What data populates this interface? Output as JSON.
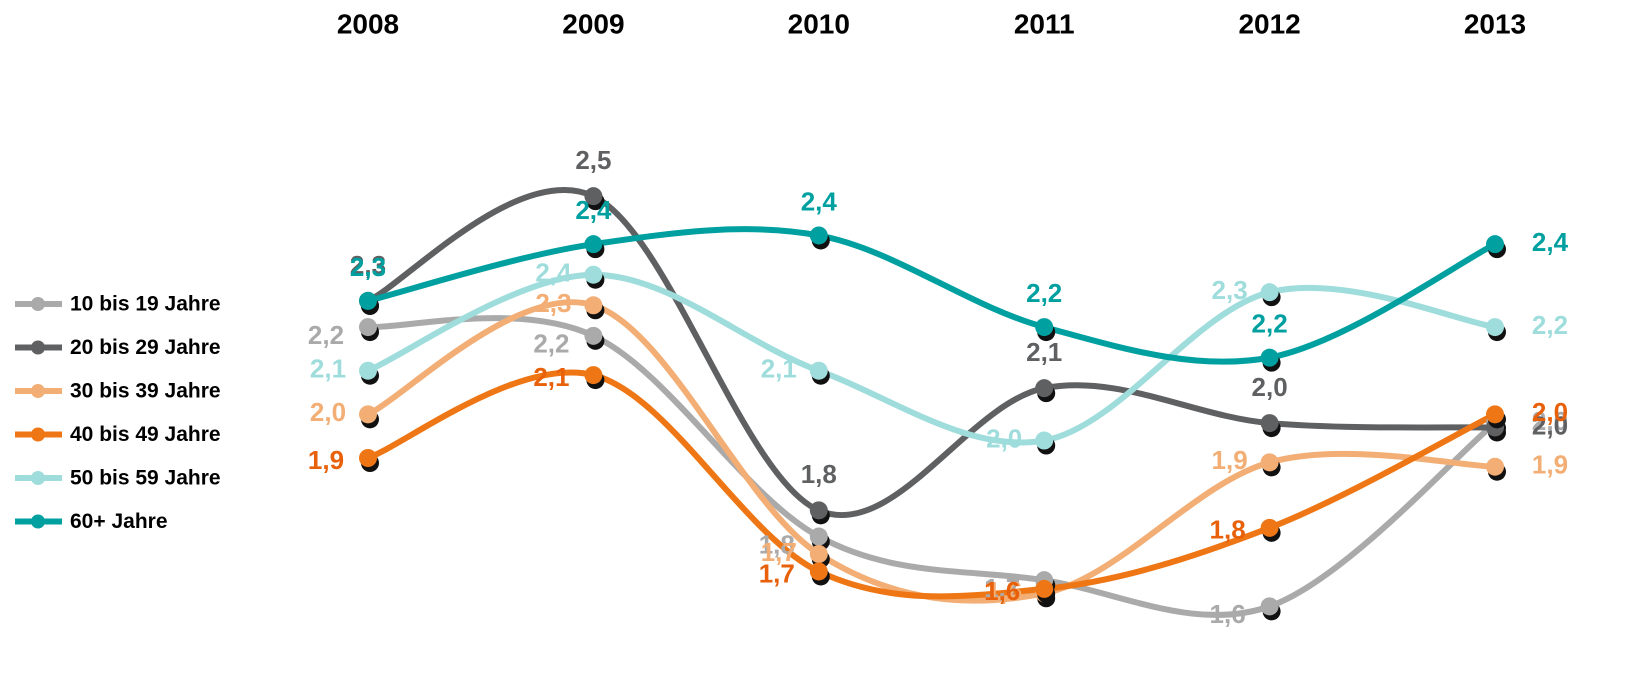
{
  "chart_data": {
    "type": "line",
    "x": [
      "2008",
      "2009",
      "2010",
      "2011",
      "2012",
      "2013"
    ],
    "ylim": [
      1.5,
      2.6
    ],
    "series": [
      {
        "name": "10 bis 19 Jahre",
        "color": "#aaaaaa",
        "values": [
          2.24,
          2.22,
          1.76,
          1.66,
          1.6,
          2.02
        ],
        "value_labels": [
          "2,2",
          "2,2",
          "1,8",
          "1,7",
          "1,6",
          "2,0"
        ]
      },
      {
        "name": "20 bis 29 Jahre",
        "color": "#5f6062",
        "values": [
          2.3,
          2.54,
          1.82,
          2.1,
          2.02,
          2.01
        ],
        "value_labels": [
          "2,3",
          "2,5",
          "1,8",
          "2,1",
          "2,0",
          "2,0"
        ]
      },
      {
        "name": "30 bis 39 Jahre",
        "color": "#f2ae74",
        "values": [
          2.04,
          2.29,
          1.72,
          1.63,
          1.93,
          1.92
        ],
        "value_labels": [
          "2,0",
          "2,3",
          "1,7",
          "1,6",
          "1,9",
          "1,9"
        ]
      },
      {
        "name": "40 bis 49 Jahre",
        "color": "#ef7614",
        "values": [
          1.94,
          2.13,
          1.68,
          1.64,
          1.78,
          2.04
        ],
        "value_labels": [
          "1,9",
          "2,1",
          "1,7",
          "1,6",
          "1,8",
          "2,0"
        ]
      },
      {
        "name": "50 bis 59 Jahre",
        "color": "#9fdcdc",
        "values": [
          2.14,
          2.36,
          2.14,
          1.98,
          2.32,
          2.24
        ],
        "value_labels": [
          "2,1",
          "2,4",
          "2,1",
          "2,0",
          "2,3",
          "2,2"
        ]
      },
      {
        "name": "60+ Jahre",
        "color": "#00a0a0",
        "values": [
          2.3,
          2.43,
          2.45,
          2.24,
          2.17,
          2.43
        ],
        "value_labels": [
          "2,3",
          "2,4",
          "2,4",
          "2,2",
          "2,2",
          "2,4"
        ]
      }
    ]
  }
}
